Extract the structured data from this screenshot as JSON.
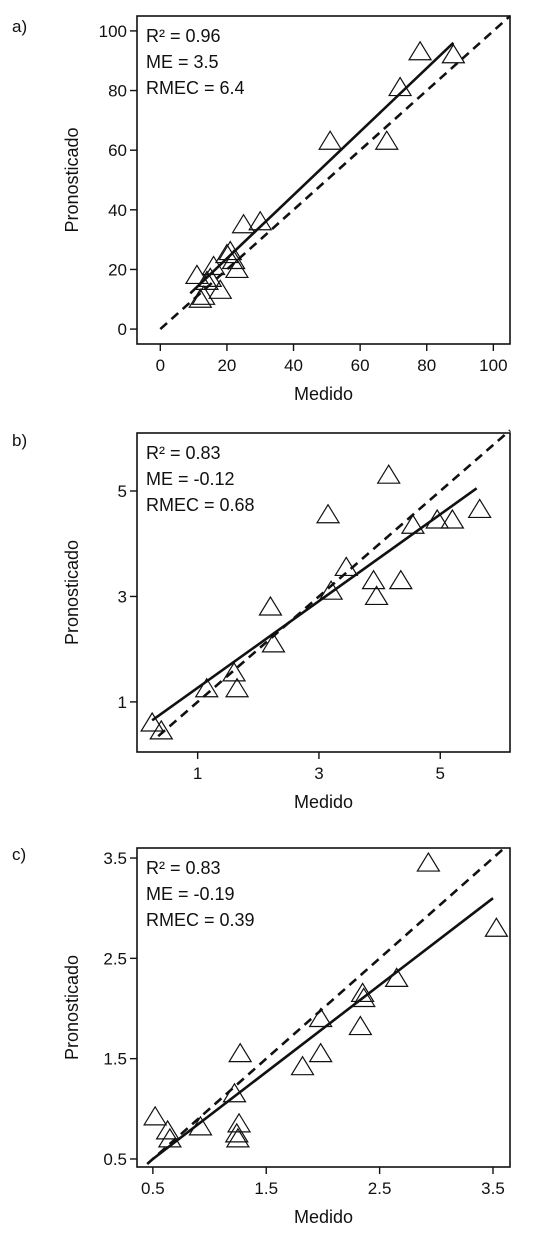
{
  "chart_data": [
    {
      "type": "scatter",
      "panel_label": "a)",
      "xlabel": "Medido",
      "ylabel": "Pronosticado",
      "xlim": [
        -7,
        105
      ],
      "ylim": [
        -5,
        105
      ],
      "xticks": [
        0,
        20,
        40,
        60,
        80,
        100
      ],
      "yticks": [
        0,
        20,
        40,
        60,
        80,
        100
      ],
      "tick_labels_x": [
        "0",
        "20",
        "40",
        "60",
        "80",
        "100"
      ],
      "tick_labels_y": [
        "0",
        "20",
        "40",
        "60",
        "80",
        "100"
      ],
      "stats": [
        "R² = 0.96",
        "ME = 3.5",
        "RMEC = 6.4"
      ],
      "marker": "open-triangle",
      "grid": false,
      "points": [
        [
          11,
          18
        ],
        [
          12,
          10
        ],
        [
          13,
          11
        ],
        [
          14,
          16
        ],
        [
          15,
          17
        ],
        [
          16,
          21
        ],
        [
          18,
          13
        ],
        [
          20,
          25
        ],
        [
          21,
          26
        ],
        [
          22,
          23
        ],
        [
          23,
          20
        ],
        [
          25,
          35
        ],
        [
          30,
          36
        ],
        [
          51,
          63
        ],
        [
          68,
          63
        ],
        [
          72,
          81
        ],
        [
          78,
          93
        ],
        [
          88,
          92
        ]
      ],
      "regression_line": [
        [
          9,
          12
        ],
        [
          88,
          96
        ]
      ],
      "identity_line": [
        [
          0,
          0
        ],
        [
          105,
          105
        ]
      ]
    },
    {
      "type": "scatter",
      "panel_label": "b)",
      "xlabel": "Medido",
      "ylabel": "Pronosticado",
      "xlim": [
        0,
        6.15
      ],
      "ylim": [
        0.05,
        6.1
      ],
      "xticks": [
        1,
        3,
        5
      ],
      "yticks": [
        1,
        3,
        5
      ],
      "tick_labels_x": [
        "1",
        "3",
        "5"
      ],
      "tick_labels_y": [
        "1",
        "3",
        "5"
      ],
      "stats": [
        "R² = 0.83",
        "ME = -0.12",
        "RMEC = 0.68"
      ],
      "marker": "open-triangle",
      "grid": false,
      "points": [
        [
          0.25,
          0.6
        ],
        [
          0.4,
          0.45
        ],
        [
          1.15,
          1.25
        ],
        [
          1.6,
          1.55
        ],
        [
          1.65,
          1.25
        ],
        [
          2.2,
          2.8
        ],
        [
          2.25,
          2.1
        ],
        [
          3.15,
          4.55
        ],
        [
          3.2,
          3.1
        ],
        [
          3.45,
          3.55
        ],
        [
          3.9,
          3.3
        ],
        [
          3.95,
          3.0
        ],
        [
          4.15,
          5.3
        ],
        [
          4.35,
          3.3
        ],
        [
          4.55,
          4.35
        ],
        [
          4.95,
          4.45
        ],
        [
          5.2,
          4.45
        ],
        [
          5.65,
          4.65
        ]
      ],
      "regression_line": [
        [
          0.25,
          0.65
        ],
        [
          5.6,
          5.05
        ]
      ],
      "identity_line": [
        [
          0.35,
          0.35
        ],
        [
          6.15,
          6.15
        ]
      ]
    },
    {
      "type": "scatter",
      "panel_label": "c)",
      "xlabel": "Medido",
      "ylabel": "Pronosticado",
      "xlim": [
        0.36,
        3.65
      ],
      "ylim": [
        0.42,
        3.6
      ],
      "xticks": [
        0.5,
        1.5,
        2.5,
        3.5
      ],
      "yticks": [
        0.5,
        1.5,
        2.5,
        3.5
      ],
      "tick_labels_x": [
        "0.5",
        "1.5",
        "2.5",
        "3.5"
      ],
      "tick_labels_y": [
        "0.5",
        "1.5",
        "2.5",
        "3.5"
      ],
      "stats": [
        "R² = 0.83",
        "ME = -0.19",
        "RMEC = 0.39"
      ],
      "marker": "open-triangle",
      "grid": false,
      "points": [
        [
          0.52,
          0.92
        ],
        [
          0.63,
          0.78
        ],
        [
          0.65,
          0.7
        ],
        [
          0.92,
          0.82
        ],
        [
          1.22,
          1.15
        ],
        [
          1.24,
          0.75
        ],
        [
          1.25,
          0.7
        ],
        [
          1.26,
          0.85
        ],
        [
          1.27,
          1.55
        ],
        [
          1.82,
          1.42
        ],
        [
          1.98,
          1.9
        ],
        [
          1.98,
          1.55
        ],
        [
          2.33,
          1.82
        ],
        [
          2.35,
          2.15
        ],
        [
          2.36,
          2.1
        ],
        [
          2.65,
          2.3
        ],
        [
          2.93,
          3.45
        ],
        [
          3.53,
          2.8
        ]
      ],
      "regression_line": [
        [
          0.5,
          0.5
        ],
        [
          3.5,
          3.1
        ]
      ],
      "identity_line": [
        [
          0.45,
          0.45
        ],
        [
          3.6,
          3.6
        ]
      ]
    }
  ]
}
